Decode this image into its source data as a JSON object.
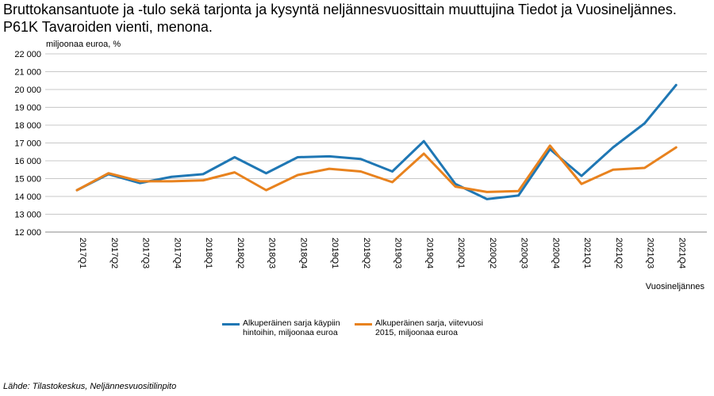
{
  "title": "Bruttokansantuote ja -tulo sekä tarjonta ja kysyntä neljännesvuosittain muuttujina Tiedot ja Vuosineljännes. P61K Tavaroiden vienti, menona.",
  "source": "Lähde: Tilastokeskus, Neljännesvuositilinpito",
  "chart_data": {
    "type": "line",
    "ylabel": "miljoonaa euroa, %",
    "xlabel": "Vuosineljännes",
    "ylim": [
      12000,
      22000
    ],
    "yticks": [
      12000,
      13000,
      14000,
      15000,
      16000,
      17000,
      18000,
      19000,
      20000,
      21000,
      22000
    ],
    "ytick_labels": [
      "12 000",
      "13 000",
      "14 000",
      "15 000",
      "16 000",
      "17 000",
      "18 000",
      "19 000",
      "20 000",
      "21 000",
      "22 000"
    ],
    "grid": true,
    "legend_position": "bottom",
    "categories": [
      "2017Q1",
      "2017Q2",
      "2017Q3",
      "2017Q4",
      "2018Q1",
      "2018Q2",
      "2018Q3",
      "2018Q4",
      "2019Q1",
      "2019Q2",
      "2019Q3",
      "2019Q4",
      "2020Q1",
      "2020Q2",
      "2020Q3",
      "2020Q4",
      "2021Q1",
      "2021Q2",
      "2021Q3",
      "2021Q4"
    ],
    "series": [
      {
        "name": "Alkuperäinen sarja käypiin hintoihin, miljoonaa euroa",
        "color": "#1f77b4",
        "values": [
          14350,
          15250,
          14750,
          15100,
          15250,
          16200,
          15300,
          16200,
          16250,
          16100,
          15400,
          17100,
          14700,
          13850,
          14050,
          16650,
          15150,
          16750,
          18100,
          20250
        ]
      },
      {
        "name": "Alkuperäinen sarja, viitevuosi 2015, miljoonaa euroa",
        "color": "#e8821e",
        "values": [
          14350,
          15300,
          14850,
          14850,
          14900,
          15350,
          14350,
          15200,
          15550,
          15400,
          14800,
          16400,
          14550,
          14250,
          14300,
          16850,
          14700,
          15500,
          15600,
          16750
        ]
      }
    ]
  }
}
